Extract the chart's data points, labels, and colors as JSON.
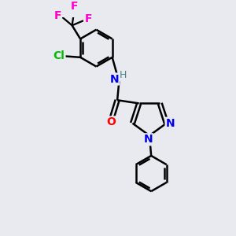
{
  "bg_color": "#e8eaf0",
  "bond_color": "#000000",
  "bond_width": 1.8,
  "atom_colors": {
    "C": "#000000",
    "N": "#0000ee",
    "O": "#ff0000",
    "F": "#ff00cc",
    "Cl": "#00bb00",
    "H": "#448888"
  },
  "font_size": 10,
  "fig_size": [
    3.0,
    3.0
  ],
  "dpi": 100,
  "xlim": [
    0,
    10
  ],
  "ylim": [
    0,
    10
  ]
}
